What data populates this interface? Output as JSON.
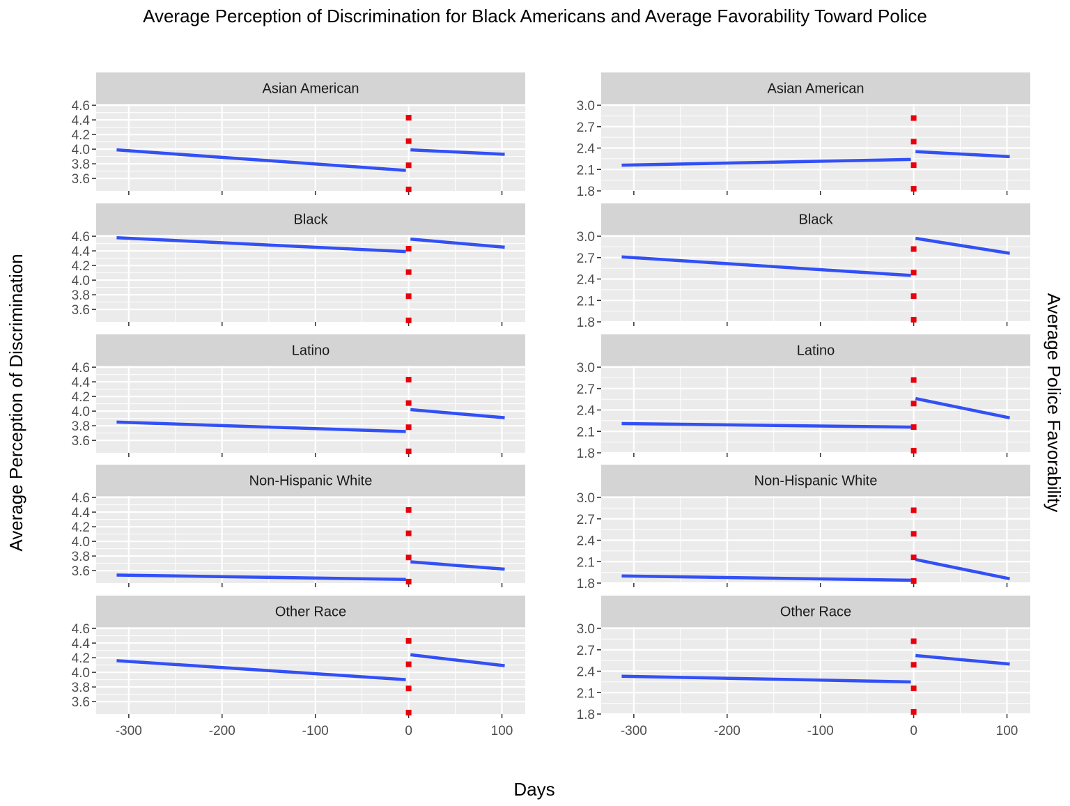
{
  "chart_data": {
    "type": "line",
    "title": "Average Perception of Discrimination for Black Americans and Average Favorability Toward Police",
    "xlabel": "Days",
    "facet_labels": [
      "Asian American",
      "Black",
      "Latino",
      "Non-Hispanic White",
      "Other Race"
    ],
    "x_ticks": [
      -300,
      -200,
      -100,
      0,
      100
    ],
    "xlim": [
      -335,
      125
    ],
    "grid": true,
    "colors": {
      "line": "#3250f5",
      "marker": "#e8000b",
      "panel": "#ebebeb",
      "strip": "#d4d4d4",
      "grid": "#ffffff"
    },
    "columns": [
      {
        "ylabel": "Average Perception of Discrimination",
        "ylim": [
          3.43,
          4.62
        ],
        "y_ticks": [
          3.6,
          3.8,
          4.0,
          4.2,
          4.4,
          4.6
        ],
        "y_tick_labels": [
          "3.6",
          "3.8",
          "4.0",
          "4.2",
          "4.4",
          "4.6"
        ],
        "marker_values": [
          4.43,
          4.11,
          3.78,
          3.45
        ],
        "panels": [
          {
            "label": "Asian American",
            "pre": {
              "x": [
                -313,
                -3
              ],
              "y": [
                3.99,
                3.71
              ]
            },
            "post": {
              "x": [
                2,
                103
              ],
              "y": [
                3.99,
                3.93
              ]
            }
          },
          {
            "label": "Black",
            "pre": {
              "x": [
                -313,
                -3
              ],
              "y": [
                4.58,
                4.39
              ]
            },
            "post": {
              "x": [
                2,
                103
              ],
              "y": [
                4.56,
                4.45
              ]
            }
          },
          {
            "label": "Latino",
            "pre": {
              "x": [
                -313,
                -3
              ],
              "y": [
                3.85,
                3.72
              ]
            },
            "post": {
              "x": [
                2,
                103
              ],
              "y": [
                4.02,
                3.91
              ]
            }
          },
          {
            "label": "Non-Hispanic White",
            "pre": {
              "x": [
                -313,
                -3
              ],
              "y": [
                3.54,
                3.48
              ]
            },
            "post": {
              "x": [
                2,
                103
              ],
              "y": [
                3.72,
                3.62
              ]
            }
          },
          {
            "label": "Other Race",
            "pre": {
              "x": [
                -313,
                -3
              ],
              "y": [
                4.16,
                3.9
              ]
            },
            "post": {
              "x": [
                2,
                103
              ],
              "y": [
                4.24,
                4.09
              ]
            }
          }
        ]
      },
      {
        "ylabel": "Average Police Favorability",
        "ylim": [
          1.8,
          3.02
        ],
        "y_ticks": [
          1.8,
          2.1,
          2.4,
          2.7,
          3.0
        ],
        "y_tick_labels": [
          "1.8",
          "2.1",
          "2.4",
          "2.7",
          "3.0"
        ],
        "marker_values": [
          2.82,
          2.49,
          2.16,
          1.83
        ],
        "panels": [
          {
            "label": "Asian American",
            "pre": {
              "x": [
                -313,
                -3
              ],
              "y": [
                2.16,
                2.24
              ]
            },
            "post": {
              "x": [
                2,
                103
              ],
              "y": [
                2.35,
                2.28
              ]
            }
          },
          {
            "label": "Black",
            "pre": {
              "x": [
                -313,
                -3
              ],
              "y": [
                2.71,
                2.45
              ]
            },
            "post": {
              "x": [
                2,
                103
              ],
              "y": [
                2.97,
                2.76
              ]
            }
          },
          {
            "label": "Latino",
            "pre": {
              "x": [
                -313,
                -3
              ],
              "y": [
                2.21,
                2.16
              ]
            },
            "post": {
              "x": [
                2,
                103
              ],
              "y": [
                2.56,
                2.29
              ]
            }
          },
          {
            "label": "Non-Hispanic White",
            "pre": {
              "x": [
                -313,
                -3
              ],
              "y": [
                1.9,
                1.84
              ]
            },
            "post": {
              "x": [
                2,
                103
              ],
              "y": [
                2.13,
                1.86
              ]
            }
          },
          {
            "label": "Other Race",
            "pre": {
              "x": [
                -313,
                -3
              ],
              "y": [
                2.33,
                2.25
              ]
            },
            "post": {
              "x": [
                2,
                103
              ],
              "y": [
                2.62,
                2.5
              ]
            }
          }
        ]
      }
    ]
  }
}
